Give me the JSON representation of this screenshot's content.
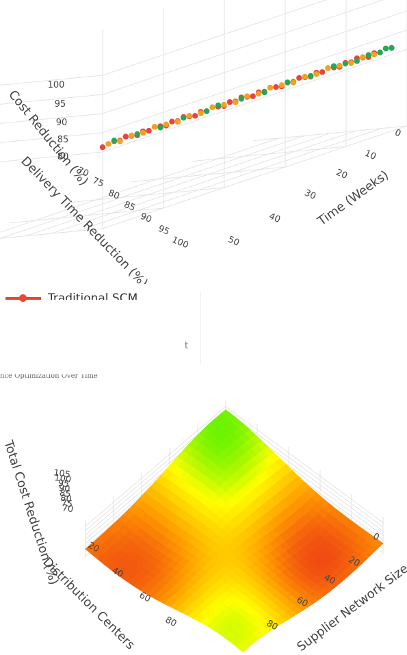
{
  "chart_data": [
    {
      "type": "scatter",
      "xlabel": "Time (Weeks)",
      "ylabel": "Delivery Time Reduction (%)",
      "zlabel": "Cost Reduction (%)",
      "x_ticks": [
        0,
        10,
        20,
        30,
        40,
        50
      ],
      "y_ticks": [
        70,
        75,
        80,
        85,
        90,
        95,
        100
      ],
      "z_ticks": [
        80,
        85,
        90,
        95,
        100
      ],
      "series": [
        {
          "name": "Traditional SCM",
          "color": "#e8453c",
          "t": [
            0,
            2,
            3,
            4,
            5,
            6,
            7,
            8,
            9,
            10,
            11,
            12,
            13,
            14,
            15,
            16,
            17,
            18,
            19,
            20,
            21,
            22,
            23,
            24,
            25,
            26,
            27,
            28,
            29,
            30,
            31,
            32,
            33,
            34,
            35,
            36,
            37,
            38,
            39,
            40,
            41,
            42,
            43,
            44,
            45,
            46,
            47,
            48,
            49
          ],
          "delivery": [
            99.5,
            99,
            98.5,
            98,
            98,
            97,
            96.5,
            96,
            95.5,
            95,
            94.5,
            94,
            93.5,
            93,
            92.5,
            92,
            91.5,
            91,
            90.5,
            90,
            89.5,
            89,
            88.5,
            88,
            87.5,
            87,
            86.5,
            86,
            85.5,
            85,
            84.5,
            84,
            83.5,
            83,
            82.5,
            82,
            81.5,
            81,
            80.5,
            80,
            79.5,
            79,
            78.5,
            78,
            77.5,
            77,
            76.5,
            76,
            75.5
          ],
          "cost": [
            100.5,
            100,
            99.5,
            99.5,
            99,
            98.5,
            98,
            97.5,
            97.5,
            97,
            96.5,
            96,
            96,
            95.5,
            95,
            94.5,
            94.5,
            94,
            93.5,
            93,
            93,
            92.5,
            92,
            91.5,
            91.5,
            91,
            90.5,
            90,
            90,
            89.5,
            89,
            88.5,
            88.5,
            88,
            87.5,
            87,
            87,
            86.5,
            86,
            85.5,
            85.5,
            85,
            84.5,
            84,
            84,
            83.5,
            83,
            82.5,
            82.5
          ]
        },
        {
          "name": "",
          "color": "#f2a21e",
          "t": [
            1,
            3,
            5,
            7,
            9,
            11,
            13,
            15,
            17,
            19,
            21,
            23,
            25,
            27,
            29,
            31,
            33,
            35,
            37,
            39,
            41,
            43,
            45,
            47
          ],
          "delivery": [
            99,
            98,
            97,
            96,
            95,
            94,
            93,
            92,
            91,
            90,
            89,
            88,
            87,
            86,
            85,
            84,
            83,
            82,
            81,
            80,
            79,
            78,
            77,
            76
          ],
          "cost": [
            99.5,
            98.5,
            98,
            97,
            96,
            95.5,
            94.5,
            93.5,
            93,
            92,
            91.5,
            90.5,
            89.5,
            89,
            88,
            87.5,
            86.5,
            85.5,
            85,
            84,
            83.5,
            82.5,
            81.5,
            81
          ]
        },
        {
          "name": "",
          "color": "#24a857",
          "t": [
            2,
            6,
            10,
            14,
            18,
            20,
            24,
            28,
            32,
            36,
            40,
            42,
            44,
            46,
            48,
            49,
            50
          ],
          "delivery": [
            99,
            97,
            95,
            93,
            91,
            90,
            88,
            86,
            84,
            82,
            80,
            79,
            78,
            77,
            76,
            75.5,
            75
          ],
          "cost": [
            99.5,
            97.5,
            96,
            94,
            92.5,
            91.5,
            90,
            88.5,
            86.5,
            85,
            83,
            82,
            81.5,
            80.5,
            80,
            79.5,
            79
          ]
        }
      ],
      "legend": [
        "Traditional SCM"
      ],
      "legend_fragment": "t"
    },
    {
      "type": "surface",
      "subtitle": "nce Optimization Over Time",
      "xlabel": "Supplier Network Size",
      "ylabel": "Distribution Centers",
      "zlabel": "Total Cost Reduction (%)",
      "x_ticks": [
        0,
        20,
        40,
        60,
        80
      ],
      "y_ticks": [
        20,
        40,
        60,
        80
      ],
      "z_ticks": [
        70,
        75,
        80,
        85,
        90,
        95,
        100,
        105
      ],
      "z_range": [
        70,
        105
      ],
      "colorscale": [
        "#e8201c",
        "#ff9900",
        "#ffff00",
        "#33ee00"
      ]
    }
  ]
}
